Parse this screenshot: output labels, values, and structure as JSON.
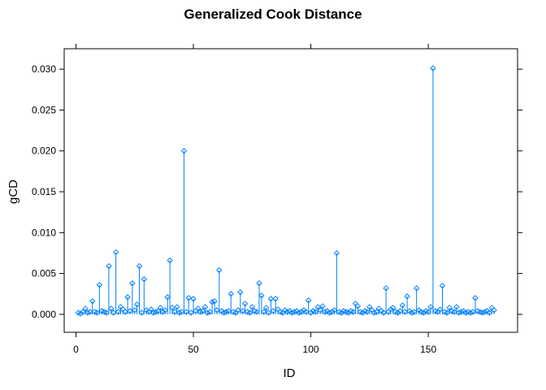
{
  "chart_data": {
    "type": "scatter",
    "title": "Generalized Cook Distance",
    "xlabel": "ID",
    "ylabel": "gCD",
    "xlim": [
      -5,
      188
    ],
    "ylim": [
      -0.0022,
      0.0325
    ],
    "x_ticks": [
      0,
      50,
      100,
      150
    ],
    "y_ticks": [
      0.0,
      0.005,
      0.01,
      0.015,
      0.02,
      0.025,
      0.03
    ],
    "x_tick_labels": [
      "0",
      "50",
      "100",
      "150"
    ],
    "y_tick_labels": [
      "0.000",
      "0.005",
      "0.010",
      "0.015",
      "0.020",
      "0.025",
      "0.030"
    ],
    "grid": false,
    "color": "#0080ff",
    "marker": "diamond",
    "series": [
      {
        "x": [
          1,
          2,
          3,
          4,
          5,
          6,
          7,
          8,
          9,
          10,
          11,
          12,
          13,
          14,
          15,
          16,
          17,
          18,
          19,
          20,
          21,
          22,
          23,
          24,
          25,
          26,
          27,
          28,
          29,
          30,
          31,
          32,
          33,
          34,
          35,
          36,
          37,
          38,
          39,
          40,
          41,
          42,
          43,
          44,
          45,
          46,
          47,
          48,
          49,
          50,
          51,
          52,
          53,
          54,
          55,
          56,
          57,
          58,
          59,
          60,
          61,
          62,
          63,
          64,
          65,
          66,
          67,
          68,
          69,
          70,
          71,
          72,
          73,
          74,
          75,
          76,
          77,
          78,
          79,
          80,
          81,
          82,
          83,
          84,
          85,
          86,
          87,
          88,
          89,
          90,
          91,
          92,
          93,
          94,
          95,
          96,
          97,
          98,
          99,
          100,
          101,
          102,
          103,
          104,
          105,
          106,
          107,
          108,
          109,
          110,
          111,
          112,
          113,
          114,
          115,
          116,
          117,
          118,
          119,
          120,
          121,
          122,
          123,
          124,
          125,
          126,
          127,
          128,
          129,
          130,
          131,
          132,
          133,
          134,
          135,
          136,
          137,
          138,
          139,
          140,
          141,
          142,
          143,
          144,
          145,
          146,
          147,
          148,
          149,
          150,
          151,
          152,
          153,
          154,
          155,
          156,
          157,
          158,
          159,
          160,
          161,
          162,
          163,
          164,
          165,
          166,
          167,
          168,
          169,
          170,
          171,
          172,
          173,
          174,
          175,
          176,
          177,
          178
        ],
        "y": [
          0.0002,
          0.0001,
          0.0003,
          0.0007,
          0.0002,
          0.0003,
          0.0016,
          0.0003,
          0.0002,
          0.0036,
          0.0004,
          0.0003,
          0.0002,
          0.0059,
          0.0007,
          0.0002,
          0.0076,
          0.0003,
          0.0009,
          0.0006,
          0.0003,
          0.0021,
          0.0004,
          0.0038,
          0.0005,
          0.0012,
          0.0059,
          0.0002,
          0.0043,
          0.0005,
          0.0003,
          0.0006,
          0.0002,
          0.0003,
          0.0004,
          0.0008,
          0.0003,
          0.0005,
          0.0021,
          0.0066,
          0.0008,
          0.0003,
          0.0009,
          0.0002,
          0.0003,
          0.02,
          0.0003,
          0.002,
          0.0002,
          0.0019,
          0.0004,
          0.0007,
          0.0003,
          0.0004,
          0.0009,
          0.0002,
          0.0003,
          0.0015,
          0.0016,
          0.0005,
          0.0054,
          0.0004,
          0.0002,
          0.0003,
          0.0004,
          0.0025,
          0.0003,
          0.0002,
          0.0005,
          0.0027,
          0.0004,
          0.0013,
          0.0003,
          0.0002,
          0.0009,
          0.0004,
          0.0003,
          0.0038,
          0.0023,
          0.0003,
          0.0008,
          0.0002,
          0.0019,
          0.0004,
          0.0019,
          0.0006,
          0.0003,
          0.0002,
          0.0005,
          0.0003,
          0.0004,
          0.0002,
          0.0003,
          0.0004,
          0.0002,
          0.0003,
          0.0005,
          0.0003,
          0.0017,
          0.0002,
          0.0004,
          0.0003,
          0.0009,
          0.0005,
          0.001,
          0.0003,
          0.0004,
          0.0002,
          0.0003,
          0.0005,
          0.0075,
          0.0003,
          0.0002,
          0.0004,
          0.0003,
          0.0002,
          0.0004,
          0.0003,
          0.0013,
          0.001,
          0.0003,
          0.0002,
          0.0004,
          0.0003,
          0.0009,
          0.0005,
          0.0002,
          0.0003,
          0.0007,
          0.0004,
          0.0002,
          0.0032,
          0.0003,
          0.0006,
          0.0008,
          0.0003,
          0.0002,
          0.0004,
          0.0011,
          0.0003,
          0.0022,
          0.0004,
          0.0002,
          0.0003,
          0.0032,
          0.0005,
          0.0003,
          0.0002,
          0.0004,
          0.0003,
          0.0009,
          0.0301,
          0.0004,
          0.0003,
          0.0006,
          0.0035,
          0.0003,
          0.0002,
          0.0008,
          0.0004,
          0.0003,
          0.0009,
          0.0002,
          0.0003,
          0.0004,
          0.0002,
          0.0003,
          0.0002,
          0.0003,
          0.002,
          0.0004,
          0.0003,
          0.0002,
          0.0003,
          0.0004,
          0.0002,
          0.0008,
          0.0005
        ]
      }
    ]
  }
}
